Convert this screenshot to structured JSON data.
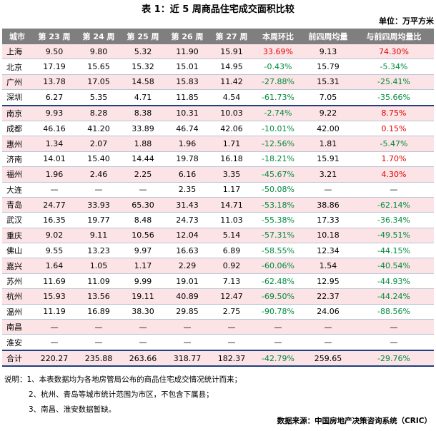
{
  "title": "表 1：近 5 周商品住宅成交面积比较",
  "unit": "单位：万平方米",
  "headers": [
    "城市",
    "第 23 周",
    "第 24 周",
    "第 25 周",
    "第 26 周",
    "第 27 周",
    "本周环比",
    "前四周均量",
    "与前四周均量比"
  ],
  "rows": [
    {
      "city": "上海",
      "w23": "9.50",
      "w24": "9.80",
      "w25": "5.32",
      "w26": "11.90",
      "w27": "15.91",
      "wow": "33.69%",
      "avg4": "9.13",
      "vs4": "74.30%",
      "wow_sign": "pos",
      "vs4_sign": "pos",
      "bg": "pink"
    },
    {
      "city": "北京",
      "w23": "17.19",
      "w24": "15.65",
      "w25": "15.32",
      "w26": "15.01",
      "w27": "14.95",
      "wow": "-0.43%",
      "avg4": "15.79",
      "vs4": "-5.34%",
      "wow_sign": "neg",
      "vs4_sign": "neg",
      "bg": "white"
    },
    {
      "city": "广州",
      "w23": "13.78",
      "w24": "17.05",
      "w25": "14.58",
      "w26": "15.83",
      "w27": "11.42",
      "wow": "-27.88%",
      "avg4": "15.31",
      "vs4": "-25.41%",
      "wow_sign": "neg",
      "vs4_sign": "neg",
      "bg": "pink"
    },
    {
      "city": "深圳",
      "w23": "6.27",
      "w24": "5.35",
      "w25": "4.71",
      "w26": "11.85",
      "w27": "4.54",
      "wow": "-61.73%",
      "avg4": "7.05",
      "vs4": "-35.66%",
      "wow_sign": "neg",
      "vs4_sign": "neg",
      "bg": "white",
      "sep": true
    },
    {
      "city": "南京",
      "w23": "9.93",
      "w24": "8.28",
      "w25": "8.38",
      "w26": "10.31",
      "w27": "10.03",
      "wow": "-2.74%",
      "avg4": "9.22",
      "vs4": "8.75%",
      "wow_sign": "neg",
      "vs4_sign": "pos",
      "bg": "pink"
    },
    {
      "city": "成都",
      "w23": "46.16",
      "w24": "41.20",
      "w25": "33.89",
      "w26": "46.74",
      "w27": "42.06",
      "wow": "-10.01%",
      "avg4": "42.00",
      "vs4": "0.15%",
      "wow_sign": "neg",
      "vs4_sign": "pos",
      "bg": "white"
    },
    {
      "city": "惠州",
      "w23": "1.34",
      "w24": "2.07",
      "w25": "1.88",
      "w26": "1.96",
      "w27": "1.71",
      "wow": "-12.56%",
      "avg4": "1.81",
      "vs4": "-5.47%",
      "wow_sign": "neg",
      "vs4_sign": "neg",
      "bg": "pink"
    },
    {
      "city": "济南",
      "w23": "14.01",
      "w24": "15.40",
      "w25": "14.44",
      "w26": "19.78",
      "w27": "16.18",
      "wow": "-18.21%",
      "avg4": "15.91",
      "vs4": "1.70%",
      "wow_sign": "neg",
      "vs4_sign": "pos",
      "bg": "white"
    },
    {
      "city": "福州",
      "w23": "1.96",
      "w24": "2.46",
      "w25": "2.25",
      "w26": "6.16",
      "w27": "3.35",
      "wow": "-45.67%",
      "avg4": "3.21",
      "vs4": "4.30%",
      "wow_sign": "neg",
      "vs4_sign": "pos",
      "bg": "pink"
    },
    {
      "city": "大连",
      "w23": "—",
      "w24": "—",
      "w25": "—",
      "w26": "2.35",
      "w27": "1.17",
      "wow": "-50.08%",
      "avg4": "—",
      "vs4": "—",
      "wow_sign": "neg",
      "vs4_sign": "",
      "bg": "white"
    },
    {
      "city": "青岛",
      "w23": "24.77",
      "w24": "33.93",
      "w25": "65.30",
      "w26": "31.43",
      "w27": "14.71",
      "wow": "-53.18%",
      "avg4": "38.86",
      "vs4": "-62.14%",
      "wow_sign": "neg",
      "vs4_sign": "neg",
      "bg": "pink"
    },
    {
      "city": "武汉",
      "w23": "16.35",
      "w24": "19.77",
      "w25": "8.48",
      "w26": "24.73",
      "w27": "11.03",
      "wow": "-55.38%",
      "avg4": "17.33",
      "vs4": "-36.34%",
      "wow_sign": "neg",
      "vs4_sign": "neg",
      "bg": "white"
    },
    {
      "city": "重庆",
      "w23": "9.02",
      "w24": "9.11",
      "w25": "10.56",
      "w26": "12.04",
      "w27": "5.14",
      "wow": "-57.31%",
      "avg4": "10.18",
      "vs4": "-49.51%",
      "wow_sign": "neg",
      "vs4_sign": "neg",
      "bg": "pink"
    },
    {
      "city": "佛山",
      "w23": "9.55",
      "w24": "13.23",
      "w25": "9.97",
      "w26": "16.63",
      "w27": "6.89",
      "wow": "-58.55%",
      "avg4": "12.34",
      "vs4": "-44.15%",
      "wow_sign": "neg",
      "vs4_sign": "neg",
      "bg": "white"
    },
    {
      "city": "嘉兴",
      "w23": "1.64",
      "w24": "1.05",
      "w25": "1.17",
      "w26": "2.29",
      "w27": "0.92",
      "wow": "-60.06%",
      "avg4": "1.54",
      "vs4": "-40.54%",
      "wow_sign": "neg",
      "vs4_sign": "neg",
      "bg": "pink"
    },
    {
      "city": "苏州",
      "w23": "11.69",
      "w24": "11.09",
      "w25": "9.99",
      "w26": "19.01",
      "w27": "7.13",
      "wow": "-62.48%",
      "avg4": "12.95",
      "vs4": "-44.93%",
      "wow_sign": "neg",
      "vs4_sign": "neg",
      "bg": "white"
    },
    {
      "city": "杭州",
      "w23": "15.93",
      "w24": "13.56",
      "w25": "19.11",
      "w26": "40.89",
      "w27": "12.47",
      "wow": "-69.50%",
      "avg4": "22.37",
      "vs4": "-44.24%",
      "wow_sign": "neg",
      "vs4_sign": "neg",
      "bg": "pink"
    },
    {
      "city": "温州",
      "w23": "11.19",
      "w24": "16.89",
      "w25": "38.30",
      "w26": "29.85",
      "w27": "2.75",
      "wow": "-90.78%",
      "avg4": "24.06",
      "vs4": "-88.56%",
      "wow_sign": "neg",
      "vs4_sign": "neg",
      "bg": "white"
    },
    {
      "city": "南昌",
      "w23": "—",
      "w24": "—",
      "w25": "—",
      "w26": "—",
      "w27": "—",
      "wow": "—",
      "avg4": "—",
      "vs4": "—",
      "wow_sign": "",
      "vs4_sign": "",
      "bg": "pink"
    },
    {
      "city": "淮安",
      "w23": "—",
      "w24": "—",
      "w25": "—",
      "w26": "—",
      "w27": "—",
      "wow": "—",
      "avg4": "—",
      "vs4": "—",
      "wow_sign": "",
      "vs4_sign": "",
      "bg": "white"
    }
  ],
  "total": {
    "city": "合计",
    "w23": "220.27",
    "w24": "235.88",
    "w25": "263.66",
    "w26": "318.77",
    "w27": "182.37",
    "wow": "-42.79%",
    "avg4": "259.65",
    "vs4": "-29.76%",
    "wow_sign": "neg",
    "vs4_sign": "neg"
  },
  "notes": [
    "说明：1、本表数据均为各地房管局公布的商品住宅成交情况统计而来；",
    "2、杭州、青岛等城市统计范围为市区，不包含下属县；",
    "3、南昌、淮安数据暂缺。"
  ],
  "source": "数据来源：中国房地产决策咨询系统（CRIC）",
  "colors": {
    "header_bg": "#7f7f7f",
    "row_pink": "#fbe3e6",
    "positive": "#e60000",
    "negative": "#008a3e",
    "separator": "#1f3f7f"
  }
}
